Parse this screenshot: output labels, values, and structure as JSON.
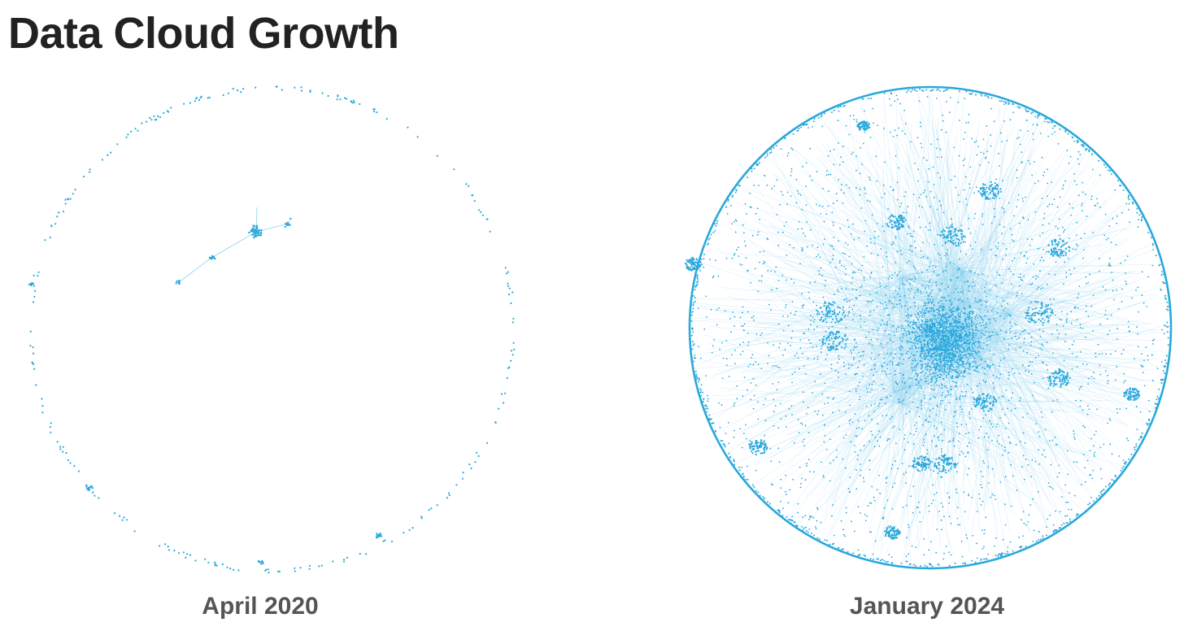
{
  "page": {
    "title": "Data Cloud Growth"
  },
  "colors": {
    "node": "#29a8dc",
    "edge": "#8fd3ef",
    "title": "#222222",
    "caption": "#555555"
  },
  "panels": [
    {
      "id": "april-2020",
      "caption": "April 2020",
      "density": "sparse"
    },
    {
      "id": "january-2024",
      "caption": "January 2024",
      "density": "dense"
    }
  ]
}
